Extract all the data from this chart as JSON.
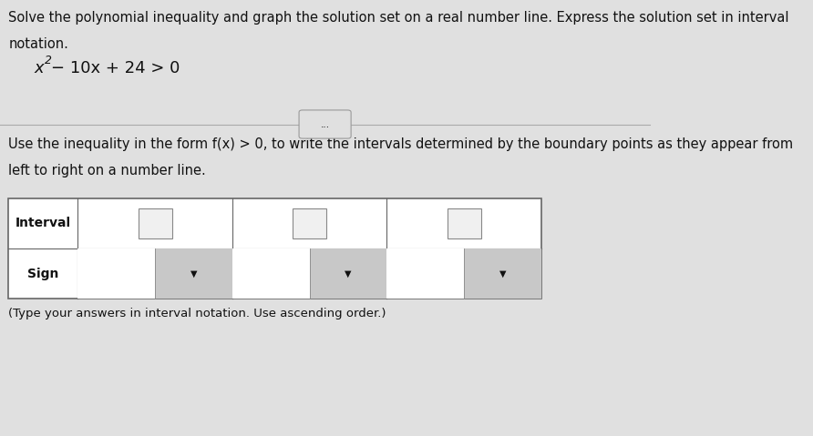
{
  "background_color": "#e0e0e0",
  "title_text_line1": "Solve the polynomial inequality and graph the solution set on a real number line. Express the solution set in interval",
  "title_text_line2": "notation.",
  "eq_base": "− 10x + 24 > 0",
  "ellipsis_text": "...",
  "instruction_line1": "Use the inequality in the form f(x) > 0, to write the intervals determined by the boundary points as they appear from",
  "instruction_line2": "left to right on a number line.",
  "footer_text": "(Type your answers in interval notation. Use ascending order.)",
  "title_fontsize": 10.5,
  "instruction_fontsize": 10.5,
  "footer_fontsize": 9.5,
  "text_color": "#111111",
  "table_border_color": "#666666",
  "table_bg": "#ffffff",
  "cell_border_color": "#888888",
  "dropdown_bg": "#c8c8c8",
  "input_bg": "#f0f0f0",
  "divider_color": "#aaaaaa",
  "ellipsis_box_color": "#cccccc"
}
